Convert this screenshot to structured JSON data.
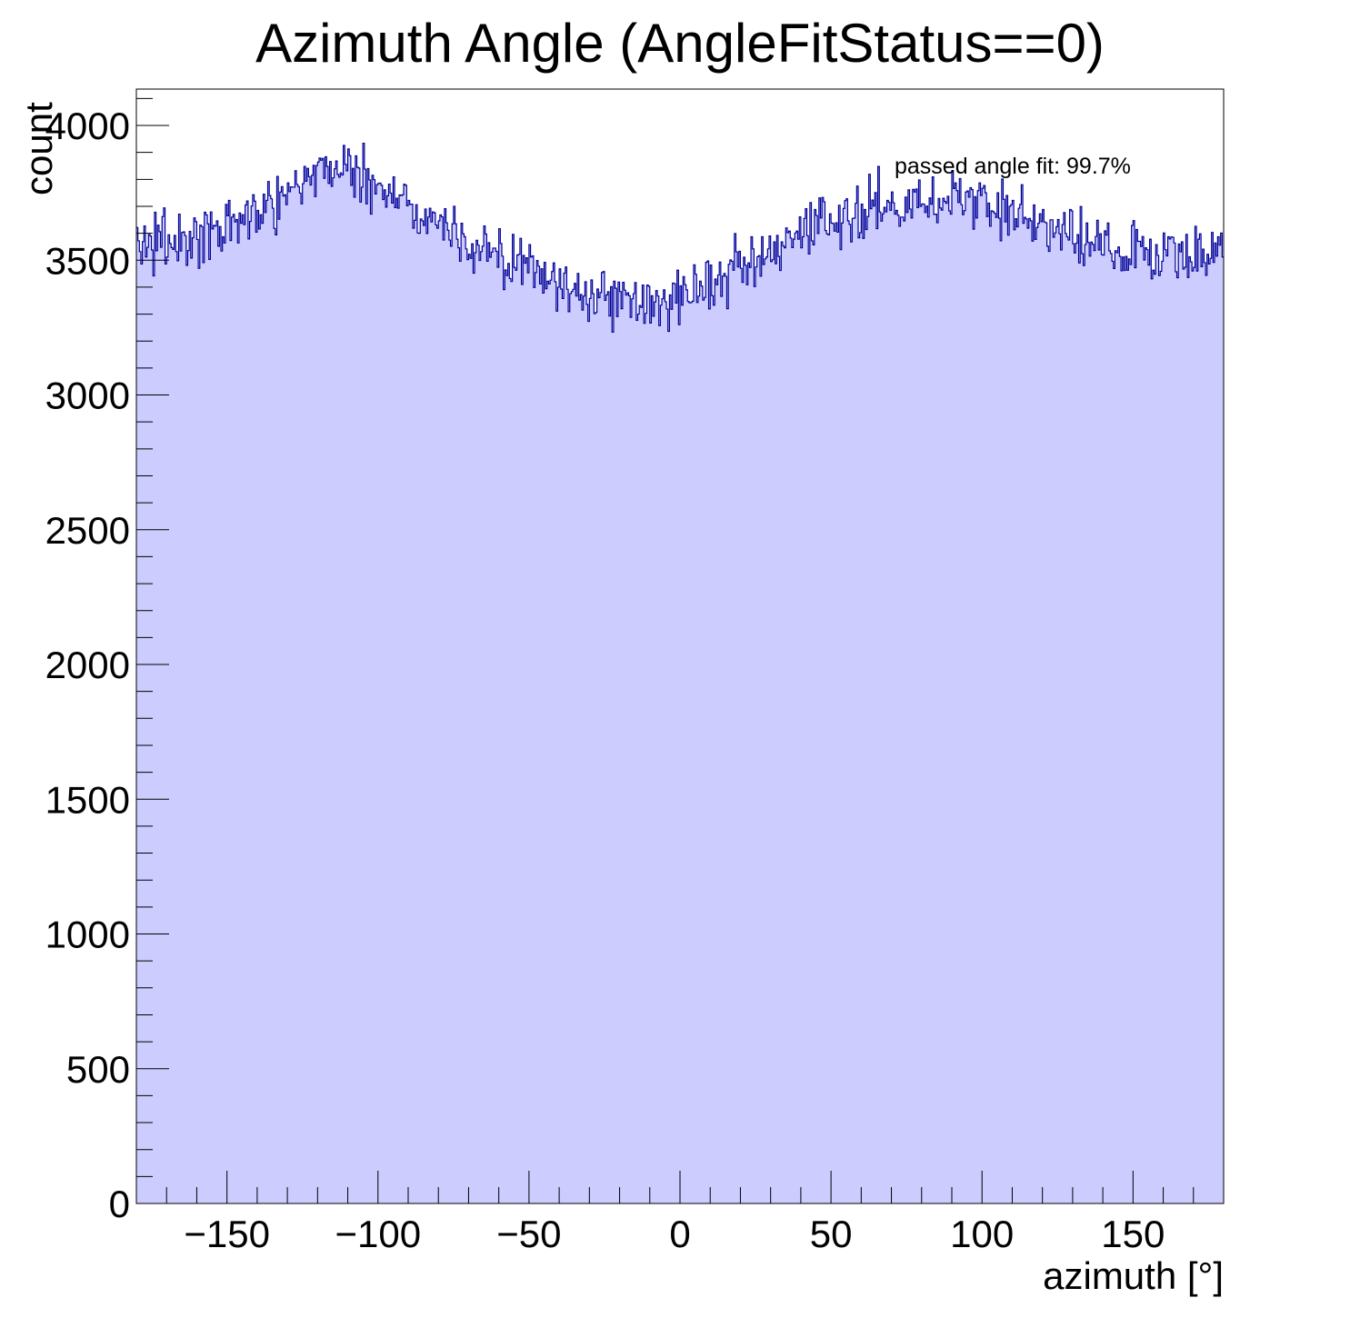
{
  "chart_data": {
    "type": "histogram",
    "title": "Azimuth Angle (AngleFitStatus==0)",
    "xlabel": "azimuth [°]",
    "ylabel": "count",
    "xlim": [
      -180,
      180
    ],
    "ylim": [
      0,
      4135
    ],
    "x_ticks": [
      -150,
      -100,
      -50,
      0,
      50,
      100,
      150
    ],
    "x_tick_labels": [
      "−150",
      "−100",
      "−50",
      "0",
      "50",
      "100",
      "150"
    ],
    "y_ticks": [
      0,
      500,
      1000,
      1500,
      2000,
      2500,
      3000,
      3500,
      4000
    ],
    "y_tick_labels": [
      "0",
      "500",
      "1000",
      "1500",
      "2000",
      "2500",
      "3000",
      "3500",
      "4000"
    ],
    "annotation": "passed angle fit: 99.7%",
    "grid": false,
    "legend": "none",
    "bins": 720,
    "bin_width": 0.5,
    "envelope": {
      "x": [
        -180,
        -170,
        -160,
        -150,
        -140,
        -130,
        -120,
        -115,
        -110,
        -100,
        -90,
        -80,
        -70,
        -60,
        -50,
        -40,
        -30,
        -20,
        -10,
        -5,
        0,
        10,
        20,
        30,
        40,
        50,
        60,
        70,
        80,
        90,
        100,
        110,
        120,
        130,
        140,
        150,
        160,
        170,
        180
      ],
      "y": [
        3560,
        3570,
        3580,
        3610,
        3680,
        3770,
        3830,
        3850,
        3840,
        3780,
        3700,
        3640,
        3570,
        3510,
        3460,
        3410,
        3380,
        3350,
        3340,
        3350,
        3370,
        3420,
        3460,
        3510,
        3580,
        3650,
        3690,
        3720,
        3720,
        3720,
        3710,
        3680,
        3630,
        3590,
        3560,
        3540,
        3520,
        3520,
        3530
      ]
    },
    "noise_amplitude": 55,
    "colors": {
      "fill": "#ccccff",
      "line": "#000099",
      "axes": "#000000"
    }
  }
}
